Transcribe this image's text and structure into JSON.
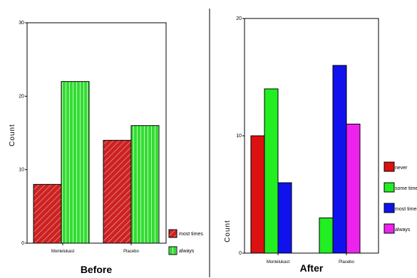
{
  "chart_data": [
    {
      "type": "bar",
      "caption": "Before",
      "ylabel": "Count",
      "xlabel": "",
      "ylim": [
        0,
        30
      ],
      "yticks": [
        "0",
        "10",
        "20",
        "30"
      ],
      "categories": [
        "Montelukast",
        "Placebo"
      ],
      "series": [
        {
          "name": "most times",
          "color": "#cc2222",
          "pattern": "hatch",
          "values": [
            8,
            14
          ]
        },
        {
          "name": "always",
          "color": "#33dd33",
          "pattern": "vlines",
          "values": [
            22,
            16
          ]
        }
      ],
      "legend": "bottom-right",
      "grid": false
    },
    {
      "type": "bar",
      "caption": "After",
      "ylabel": "Count",
      "xlabel": "",
      "ylim": [
        0,
        20
      ],
      "yticks": [
        "0",
        "10",
        "20"
      ],
      "categories": [
        "Montelukast",
        "Placebo"
      ],
      "series": [
        {
          "name": "never",
          "color": "#dd1111",
          "values": [
            10,
            0
          ]
        },
        {
          "name": "some times",
          "color": "#22ee22",
          "values": [
            14,
            3
          ]
        },
        {
          "name": "most times",
          "color": "#1111ee",
          "values": [
            6,
            16
          ]
        },
        {
          "name": "always",
          "color": "#ee22ee",
          "values": [
            0,
            11
          ]
        }
      ],
      "legend": "right",
      "grid": false
    }
  ]
}
